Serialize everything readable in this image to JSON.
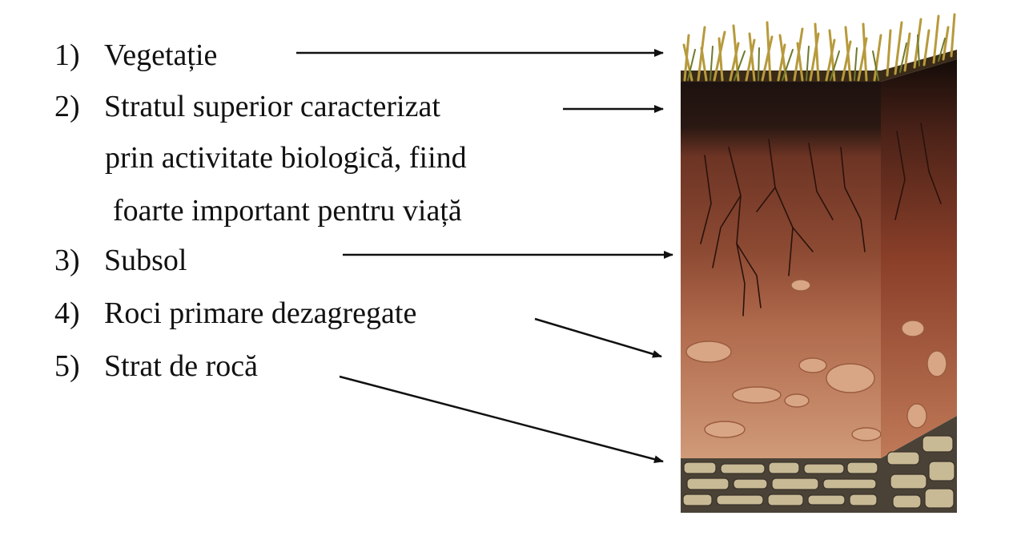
{
  "labels": [
    {
      "num": "1)",
      "text": "Vegetație"
    },
    {
      "num": "2)",
      "text": "Stratul superior caracterizat"
    },
    {
      "num": "3)",
      "text": "Subsol"
    },
    {
      "num": "4)",
      "text": "Roci primare dezagregate"
    },
    {
      "num": "5)",
      "text": "Strat de rocă"
    }
  ],
  "label2_continuation": [
    "prin activitate biologică, fiind",
    "foarte important pentru viață"
  ],
  "colors": {
    "text": "#111111",
    "arrow": "#111111",
    "grass": "#b79a3c",
    "topsoil": "#2a1a12",
    "subsoil": "#8a4a35",
    "weathered_rock": "#c88a6a",
    "bedrock": "#b9a888"
  }
}
